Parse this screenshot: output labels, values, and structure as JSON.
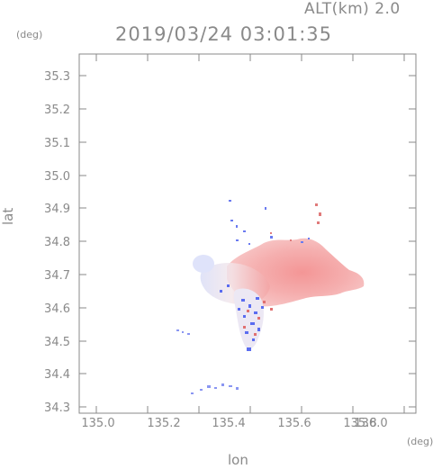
{
  "header": {
    "altitude_label": "ALT(km) 2.0",
    "timestamp": "2019/03/24 03:01:35"
  },
  "axes": {
    "lat_unit": "(deg)",
    "lon_unit": "(deg)",
    "lat_label": "lat",
    "lon_label": "lon",
    "lat_ticks": [
      "34.3",
      "34.4",
      "34.5",
      "34.6",
      "34.7",
      "34.8",
      "34.9",
      "35.0",
      "35.1",
      "35.2",
      "35.3"
    ],
    "lon_ticks": [
      "135.0",
      "135.2",
      "135.4",
      "135.6",
      "135.8",
      "136.0"
    ]
  },
  "map": {
    "type": "radar velocity field",
    "colors": {
      "approaching": "#5a6cf0",
      "receding": "#f08a8a",
      "axis": "#8a8a8a"
    }
  }
}
